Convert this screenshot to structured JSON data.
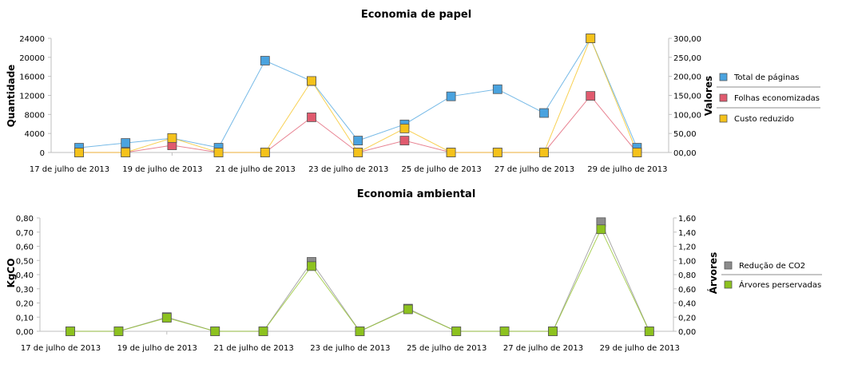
{
  "chart_data": [
    {
      "type": "line",
      "title": "Economia de papel",
      "xlabel": "",
      "ylabel": "Quantidade",
      "y2label": "Valores",
      "ylim": [
        0,
        24000
      ],
      "y2lim": [
        0,
        300
      ],
      "yticks": [
        "0",
        "4000",
        "8000",
        "12000",
        "16000",
        "20000",
        "24000"
      ],
      "y2ticks": [
        "00,00",
        "50,00",
        "100,00",
        "150,00",
        "200,00",
        "250,00",
        "300,00"
      ],
      "x_tick_labels": [
        "17 de julho de 2013",
        "19 de julho de 2013",
        "21 de julho de 2013",
        "23 de julho de 2013",
        "25 de julho de 2013",
        "27 de julho de 2013",
        "29 de julho de 2013"
      ],
      "categories": [
        "17/07",
        "18/07",
        "19/07",
        "20/07",
        "21/07",
        "22/07",
        "23/07",
        "24/07",
        "25/07",
        "26/07",
        "27/07",
        "28/07",
        "29/07"
      ],
      "legend_position": "right",
      "series": [
        {
          "name": "Total de páginas",
          "color": "#4aa3df",
          "axis": "left",
          "values": [
            1000,
            2000,
            3000,
            1000,
            19300,
            15000,
            2500,
            5900,
            11800,
            13300,
            8300,
            24000,
            1000
          ]
        },
        {
          "name": "Folhas economizadas",
          "color": "#e05a6e",
          "axis": "left",
          "values": [
            0,
            0,
            1500,
            0,
            0,
            7400,
            0,
            2500,
            0,
            0,
            0,
            11900,
            0
          ]
        },
        {
          "name": "Custo reduzido",
          "color": "#f5c21b",
          "axis": "right",
          "values": [
            0,
            0,
            38,
            0,
            0,
            188,
            0,
            63,
            0,
            0,
            0,
            300,
            0
          ]
        }
      ]
    },
    {
      "type": "line",
      "title": "Economia ambiental",
      "xlabel": "",
      "ylabel": "KgCO",
      "y2label": "Árvores",
      "ylim": [
        0,
        0.8
      ],
      "y2lim": [
        0,
        1.6
      ],
      "yticks": [
        "0,00",
        "0,10",
        "0,20",
        "0,30",
        "0,40",
        "0,50",
        "0,60",
        "0,70",
        "0,80"
      ],
      "y2ticks": [
        "0,00",
        "0,20",
        "0,40",
        "0,60",
        "0,80",
        "1,00",
        "1,20",
        "1,40",
        "1,60"
      ],
      "x_tick_labels": [
        "17 de julho de 2013",
        "19 de julho de 2013",
        "21 de julho de 2013",
        "23 de julho de 2013",
        "25 de julho de 2013",
        "27 de julho de 2013",
        "29 de julho de 2013"
      ],
      "categories": [
        "17/07",
        "18/07",
        "19/07",
        "20/07",
        "21/07",
        "22/07",
        "23/07",
        "24/07",
        "25/07",
        "26/07",
        "27/07",
        "28/07",
        "29/07"
      ],
      "legend_position": "right",
      "series": [
        {
          "name": "Redução de CO2",
          "color": "#8c8c8c",
          "axis": "left",
          "values": [
            0,
            0,
            0.1,
            0,
            0,
            0.49,
            0,
            0.16,
            0,
            0,
            0,
            0.77,
            0
          ]
        },
        {
          "name": "Árvores perservadas",
          "color": "#8dc21f",
          "axis": "right",
          "values": [
            0,
            0,
            0.19,
            0,
            0,
            0.92,
            0,
            0.31,
            0,
            0,
            0,
            1.44,
            0
          ]
        }
      ]
    }
  ]
}
